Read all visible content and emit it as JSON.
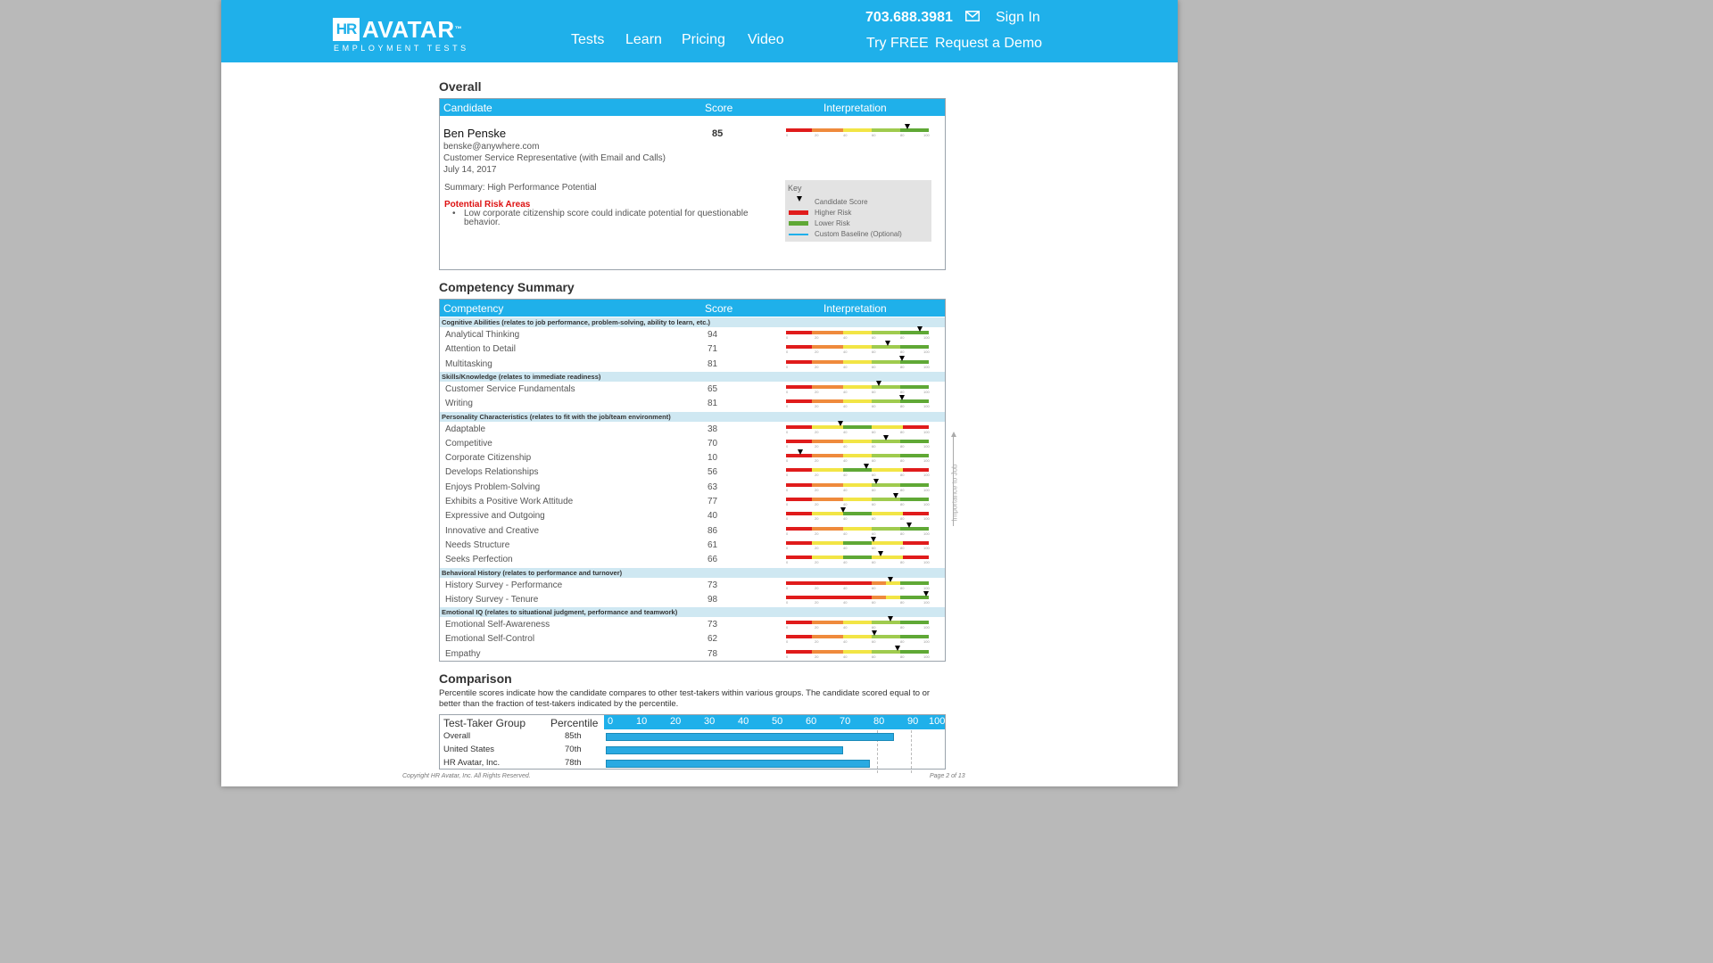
{
  "header": {
    "logo_box": "HR",
    "logo_word": "AVATAR",
    "logo_tm": "™",
    "logo_sub": "EMPLOYMENT TESTS",
    "nav": [
      "Tests",
      "Learn",
      "Pricing",
      "Video"
    ],
    "phone": "703.688.3981",
    "signin": "Sign In",
    "tryfree": "Try FREE",
    "demo": "Request a Demo"
  },
  "overall": {
    "title": "Overall",
    "col_candidate": "Candidate",
    "col_score": "Score",
    "col_interp": "Interpretation",
    "name": "Ben Penske",
    "email": "benske@anywhere.com",
    "position": "Customer Service Representative (with Email and Calls)",
    "date": "July 14, 2017",
    "score": "85",
    "summary": "Summary: High Performance Potential",
    "risk_title": "Potential Risk Areas",
    "risk_item": "Low corporate citizenship score could indicate potential for questionable behavior.",
    "key": {
      "title": "Key",
      "candidate_score": "Candidate Score",
      "higher_risk": "Higher Risk",
      "lower_risk": "Lower Risk",
      "baseline": "Custom Baseline (Optional)"
    }
  },
  "competency": {
    "title": "Competency Summary",
    "col_competency": "Competency",
    "col_score": "Score",
    "col_interp": "Interpretation",
    "side_label": "Importance to Job",
    "categories": [
      {
        "label": "Cognitive Abilities (relates to job performance, problem-solving, ability to learn, etc.)",
        "items": [
          {
            "name": "Analytical Thinking",
            "score": "94",
            "value": 94,
            "scheme": "asc"
          },
          {
            "name": "Attention to Detail",
            "score": "71",
            "value": 71,
            "scheme": "asc"
          },
          {
            "name": "Multitasking",
            "score": "81",
            "value": 81,
            "scheme": "asc"
          }
        ]
      },
      {
        "label": "Skills/Knowledge (relates to immediate readiness)",
        "items": [
          {
            "name": "Customer Service Fundamentals",
            "score": "65",
            "value": 65,
            "scheme": "asc"
          },
          {
            "name": "Writing",
            "score": "81",
            "value": 81,
            "scheme": "asc"
          }
        ]
      },
      {
        "label": "Personality Characteristics (relates to fit with the job/team environment)",
        "items": [
          {
            "name": "Adaptable",
            "score": "38",
            "value": 38,
            "scheme": "mid"
          },
          {
            "name": "Competitive",
            "score": "70",
            "value": 70,
            "scheme": "asc"
          },
          {
            "name": "Corporate Citizenship",
            "score": "10",
            "value": 10,
            "scheme": "asc"
          },
          {
            "name": "Develops Relationships",
            "score": "56",
            "value": 56,
            "scheme": "mid"
          },
          {
            "name": "Enjoys Problem-Solving",
            "score": "63",
            "value": 63,
            "scheme": "asc"
          },
          {
            "name": "Exhibits a Positive Work Attitude",
            "score": "77",
            "value": 77,
            "scheme": "asc"
          },
          {
            "name": "Expressive and Outgoing",
            "score": "40",
            "value": 40,
            "scheme": "mid"
          },
          {
            "name": "Innovative and Creative",
            "score": "86",
            "value": 86,
            "scheme": "asc"
          },
          {
            "name": "Needs Structure",
            "score": "61",
            "value": 61,
            "scheme": "mid"
          },
          {
            "name": "Seeks Perfection",
            "score": "66",
            "value": 66,
            "scheme": "mid"
          }
        ]
      },
      {
        "label": "Behavioral History (relates to performance and turnover)",
        "items": [
          {
            "name": "History Survey - Performance",
            "score": "73",
            "value": 73,
            "scheme": "hist"
          },
          {
            "name": "History Survey - Tenure",
            "score": "98",
            "value": 98,
            "scheme": "hist"
          }
        ]
      },
      {
        "label": "Emotional IQ (relates to situational judgment, performance and teamwork)",
        "items": [
          {
            "name": "Emotional Self-Awareness",
            "score": "73",
            "value": 73,
            "scheme": "asc"
          },
          {
            "name": "Emotional Self-Control",
            "score": "62",
            "value": 62,
            "scheme": "asc"
          },
          {
            "name": "Empathy",
            "score": "78",
            "value": 78,
            "scheme": "asc"
          }
        ]
      }
    ]
  },
  "comparison": {
    "title": "Comparison",
    "description": "Percentile scores indicate how the candidate compares to other test-takers within various groups. The candidate scored equal to or better than the fraction of test-takers indicated by the percentile.",
    "col_group": "Test-Taker Group",
    "col_pct": "Percentile",
    "axis": [
      "0",
      "10",
      "20",
      "30",
      "40",
      "50",
      "60",
      "70",
      "80",
      "90",
      "100"
    ],
    "rows": [
      {
        "group": "Overall",
        "pct": "85th",
        "value": 85
      },
      {
        "group": "United States",
        "pct": "70th",
        "value": 70
      },
      {
        "group": "HR Avatar, Inc.",
        "pct": "78th",
        "value": 78
      }
    ]
  },
  "ticks": [
    "0",
    "20",
    "40",
    "60",
    "80",
    "100"
  ],
  "footer": {
    "copyright": "Copyright  HR Avatar, Inc. All Rights Reserved.",
    "page": "Page 2 of 13"
  },
  "colors": {
    "red": "#e01b1b",
    "orange": "#ef8a3c",
    "yellow": "#f2e545",
    "lightgreen": "#9fcb4e",
    "green": "#5fa835",
    "accent": "#1fb0ea"
  }
}
